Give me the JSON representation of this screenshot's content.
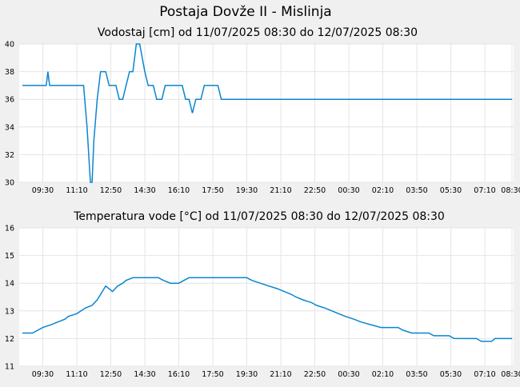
{
  "page": {
    "title": "Postaja Dovže II - Mislinja",
    "background": "#f0f0f0"
  },
  "chart_data": [
    {
      "type": "line",
      "title": "Vodostaj [cm] od 11/07/2025 08:30 do 12/07/2025 08:30",
      "color": "#0a85d0",
      "grid": true,
      "ylim": [
        30,
        40
      ],
      "yticks": [
        "40",
        "38",
        "36",
        "34",
        "32",
        "30"
      ],
      "xlim": [
        "08:30",
        "08:30"
      ],
      "xticks": [
        "09:30",
        "11:10",
        "12:50",
        "14:30",
        "16:10",
        "17:50",
        "19:30",
        "21:10",
        "22:50",
        "00:30",
        "02:10",
        "03:50",
        "05:30",
        "07:10",
        "08:30"
      ],
      "series": [
        {
          "points": [
            [
              "08:30",
              37
            ],
            [
              "09:40",
              37
            ],
            [
              "09:45",
              38
            ],
            [
              "09:50",
              37
            ],
            [
              "11:30",
              37
            ],
            [
              "11:40",
              34
            ],
            [
              "11:50",
              30
            ],
            [
              "11:55",
              30
            ],
            [
              "12:00",
              33
            ],
            [
              "12:10",
              36
            ],
            [
              "12:20",
              38
            ],
            [
              "12:35",
              38
            ],
            [
              "12:45",
              37
            ],
            [
              "13:05",
              37
            ],
            [
              "13:15",
              36
            ],
            [
              "13:25",
              36
            ],
            [
              "13:35",
              37
            ],
            [
              "13:45",
              38
            ],
            [
              "13:55",
              38
            ],
            [
              "14:05",
              40
            ],
            [
              "14:15",
              40
            ],
            [
              "14:30",
              38
            ],
            [
              "14:40",
              37
            ],
            [
              "14:55",
              37
            ],
            [
              "15:05",
              36
            ],
            [
              "15:20",
              36
            ],
            [
              "15:30",
              37
            ],
            [
              "16:20",
              37
            ],
            [
              "16:30",
              36
            ],
            [
              "16:40",
              36
            ],
            [
              "16:50",
              35
            ],
            [
              "17:00",
              36
            ],
            [
              "17:15",
              36
            ],
            [
              "17:25",
              37
            ],
            [
              "18:05",
              37
            ],
            [
              "18:15",
              36
            ],
            [
              "08:30",
              36
            ]
          ]
        }
      ]
    },
    {
      "type": "line",
      "title": "Temperatura vode [°C] od 11/07/2025 08:30 do 12/07/2025 08:30",
      "color": "#0a85d0",
      "grid": true,
      "ylim": [
        11,
        16
      ],
      "yticks": [
        "16",
        "15",
        "14",
        "13",
        "12",
        "11"
      ],
      "xlim": [
        "08:30",
        "08:30"
      ],
      "xticks": [
        "09:30",
        "11:10",
        "12:50",
        "14:30",
        "16:10",
        "17:50",
        "19:30",
        "21:10",
        "22:50",
        "00:30",
        "02:10",
        "03:50",
        "05:30",
        "07:10",
        "08:30"
      ],
      "series": [
        {
          "points": [
            [
              "08:30",
              12.2
            ],
            [
              "09:00",
              12.2
            ],
            [
              "09:15",
              12.3
            ],
            [
              "09:30",
              12.4
            ],
            [
              "09:55",
              12.5
            ],
            [
              "10:15",
              12.6
            ],
            [
              "10:35",
              12.7
            ],
            [
              "10:45",
              12.8
            ],
            [
              "11:10",
              12.9
            ],
            [
              "11:35",
              13.1
            ],
            [
              "11:55",
              13.2
            ],
            [
              "12:10",
              13.4
            ],
            [
              "12:25",
              13.7
            ],
            [
              "12:35",
              13.9
            ],
            [
              "12:45",
              13.8
            ],
            [
              "12:55",
              13.7
            ],
            [
              "13:10",
              13.9
            ],
            [
              "13:25",
              14.0
            ],
            [
              "13:35",
              14.1
            ],
            [
              "13:55",
              14.2
            ],
            [
              "15:10",
              14.2
            ],
            [
              "15:25",
              14.1
            ],
            [
              "15:45",
              14.0
            ],
            [
              "16:10",
              14.0
            ],
            [
              "16:25",
              14.1
            ],
            [
              "16:40",
              14.2
            ],
            [
              "19:30",
              14.2
            ],
            [
              "19:45",
              14.1
            ],
            [
              "20:10",
              14.0
            ],
            [
              "20:35",
              13.9
            ],
            [
              "21:00",
              13.8
            ],
            [
              "21:20",
              13.7
            ],
            [
              "21:40",
              13.6
            ],
            [
              "21:55",
              13.5
            ],
            [
              "22:15",
              13.4
            ],
            [
              "22:40",
              13.3
            ],
            [
              "22:55",
              13.2
            ],
            [
              "23:20",
              13.1
            ],
            [
              "23:40",
              13.0
            ],
            [
              "00:00",
              12.9
            ],
            [
              "00:20",
              12.8
            ],
            [
              "00:45",
              12.7
            ],
            [
              "01:05",
              12.6
            ],
            [
              "01:35",
              12.5
            ],
            [
              "02:05",
              12.4
            ],
            [
              "02:55",
              12.4
            ],
            [
              "03:10",
              12.3
            ],
            [
              "03:35",
              12.2
            ],
            [
              "04:25",
              12.2
            ],
            [
              "04:40",
              12.1
            ],
            [
              "05:25",
              12.1
            ],
            [
              "05:40",
              12.0
            ],
            [
              "06:45",
              12.0
            ],
            [
              "07:00",
              11.9
            ],
            [
              "07:30",
              11.9
            ],
            [
              "07:40",
              12.0
            ],
            [
              "08:30",
              12.0
            ]
          ]
        }
      ]
    }
  ]
}
